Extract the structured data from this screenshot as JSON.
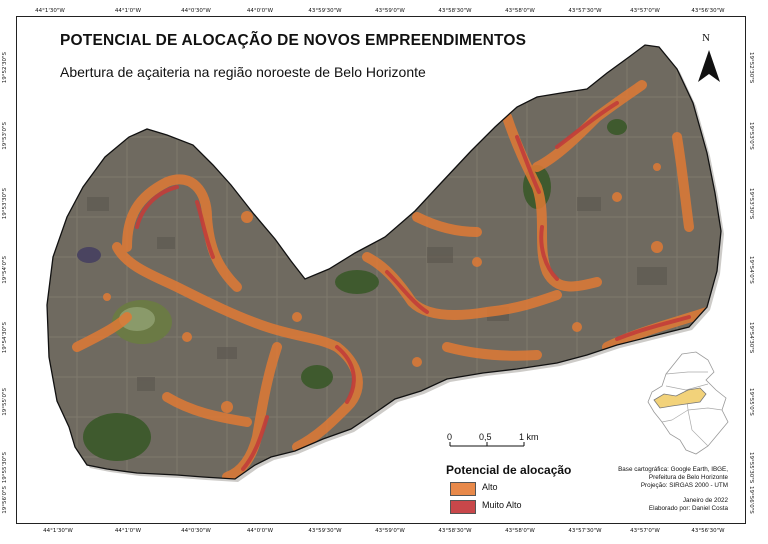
{
  "map": {
    "title": "POTENCIAL DE ALOCAÇÃO DE NOVOS EMPREENDIMENTOS",
    "subtitle": "Abertura de açaiteria na região noroeste de Belo Horizonte",
    "north_label": "N",
    "top_ticks": [
      "44°1'30\"W",
      "44°1'0\"W",
      "44°0'30\"W",
      "44°0'0\"W",
      "43°59'30\"W",
      "43°59'0\"W",
      "43°58'30\"W",
      "43°58'0\"W",
      "43°57'30\"W",
      "43°57'0\"W",
      "43°56'30\"W"
    ],
    "bottom_ticks": [
      "44°1'30\"W",
      "44°1'0\"W",
      "44°0'30\"W",
      "44°0'0\"W",
      "43°59'30\"W",
      "43°59'0\"W",
      "43°58'30\"W",
      "43°58'0\"W",
      "43°57'30\"W",
      "43°57'0\"W",
      "43°56'30\"W"
    ],
    "left_ticks": [
      "19°52'30\"S",
      "19°53'0\"S",
      "19°53'30\"S",
      "19°54'0\"S",
      "19°54'30\"S",
      "19°55'0\"S",
      "19°55'30\"S",
      "19°56'0\"S"
    ],
    "right_ticks": [
      "19°52'30\"S",
      "19°53'0\"S",
      "19°53'30\"S",
      "19°54'0\"S",
      "19°54'30\"S",
      "19°55'0\"S",
      "19°55'30\"S",
      "19°56'0\"S"
    ],
    "scale": {
      "labels": [
        "0",
        "0,5",
        "1 km"
      ]
    },
    "legend": {
      "title": "Potencial de alocação",
      "items": [
        {
          "label": "Alto",
          "color": "#e8894a"
        },
        {
          "label": "Muito Alto",
          "color": "#c8474a"
        }
      ]
    },
    "credits": {
      "base": "Base cartográfica: Google Earth, IBGE,",
      "base2": "Prefeitura de Belo Horizonte",
      "projection": "Projeção: SIRGAS 2000 - UTM",
      "date": "Janeiro de 2022",
      "author": "Elaborado por: Daniel Costa"
    },
    "colors": {
      "region_fill": "#6f6a60",
      "vegetation": "#3f5a2e",
      "alto": "#e07a35",
      "muito_alto": "#c23d3a"
    }
  }
}
